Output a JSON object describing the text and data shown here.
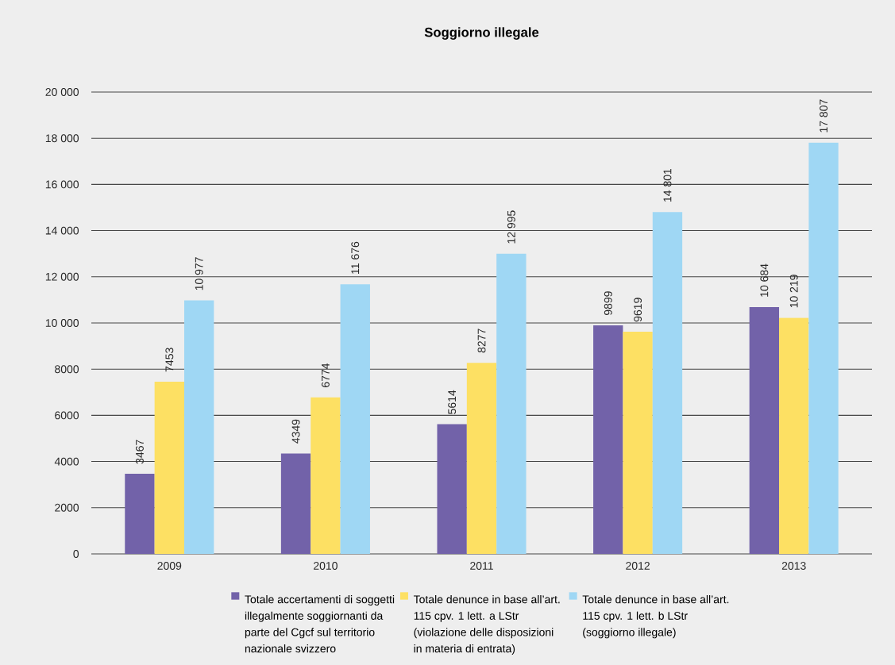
{
  "chart_data": {
    "type": "bar",
    "title": "Soggiorno illegale",
    "categories": [
      "2009",
      "2010",
      "2011",
      "2012",
      "2013"
    ],
    "series": [
      {
        "name": "Totale accertamenti di soggetti illegalmente soggiornanti da parte del Cgcf sul territorio nazionale svizzero",
        "color": "#7262a9",
        "values": [
          3467,
          4349,
          5614,
          9899,
          10684
        ],
        "value_labels": [
          "3467",
          "4349",
          "5614",
          "9899",
          "10 684"
        ]
      },
      {
        "name": "Totale denunce in base all’art. 115 cpv. 1 lett. a LStr (violazione delle disposizioni in materia di entrata)",
        "color": "#fde063",
        "values": [
          7453,
          6774,
          8277,
          9619,
          10219
        ],
        "value_labels": [
          "7453",
          "6774",
          "8277",
          "9619",
          "10 219"
        ]
      },
      {
        "name": "Totale denunce in base all’art. 115 cpv. 1 lett. b LStr (soggiorno illegale)",
        "color": "#9fd7f4",
        "values": [
          10977,
          11676,
          12995,
          14801,
          17807
        ],
        "value_labels": [
          "10 977",
          "11 676",
          "12 995",
          "14 801",
          "17 807"
        ]
      }
    ],
    "ylim": [
      0,
      20000
    ],
    "yticks": [
      0,
      2000,
      4000,
      6000,
      8000,
      {
        "value": 10000,
        "label": "10 000"
      },
      {
        "value": 12000,
        "label": "12 000"
      },
      {
        "value": 14000,
        "label": "14 000"
      },
      {
        "value": 16000,
        "label": "16 000"
      },
      {
        "value": 18000,
        "label": "18 000"
      },
      {
        "value": 20000,
        "label": "20 000"
      }
    ],
    "grid": "y",
    "legend": "bottom"
  }
}
